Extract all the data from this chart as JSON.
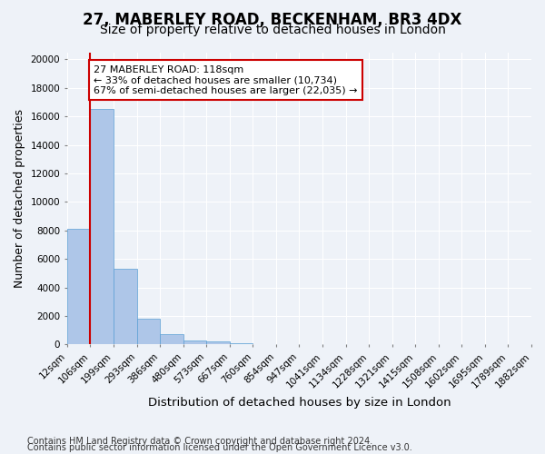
{
  "title_line1": "27, MABERLEY ROAD, BECKENHAM, BR3 4DX",
  "title_line2": "Size of property relative to detached houses in London",
  "xlabel": "Distribution of detached houses by size in London",
  "ylabel": "Number of detached properties",
  "bin_labels": [
    "12sqm",
    "106sqm",
    "199sqm",
    "293sqm",
    "386sqm",
    "480sqm",
    "573sqm",
    "667sqm",
    "760sqm",
    "854sqm",
    "947sqm",
    "1041sqm",
    "1134sqm",
    "1228sqm",
    "1321sqm",
    "1415sqm",
    "1508sqm",
    "1602sqm",
    "1695sqm",
    "1789sqm",
    "1882sqm"
  ],
  "bar_heights": [
    8100,
    16500,
    5300,
    1800,
    700,
    300,
    200,
    100,
    50,
    20,
    10,
    5,
    3,
    2,
    1,
    1,
    0,
    0,
    0,
    0
  ],
  "bar_color": "#aec6e8",
  "bar_edge_color": "#5a9fd4",
  "vline_x": 1,
  "vline_color": "#cc0000",
  "annotation_text": "27 MABERLEY ROAD: 118sqm\n← 33% of detached houses are smaller (10,734)\n67% of semi-detached houses are larger (22,035) →",
  "annotation_box_facecolor": "#ffffff",
  "annotation_box_edgecolor": "#cc0000",
  "ylim": [
    0,
    20500
  ],
  "yticks": [
    0,
    2000,
    4000,
    6000,
    8000,
    10000,
    12000,
    14000,
    16000,
    18000,
    20000
  ],
  "background_color": "#eef2f8",
  "grid_color": "#ffffff",
  "footer_line1": "Contains HM Land Registry data © Crown copyright and database right 2024.",
  "footer_line2": "Contains public sector information licensed under the Open Government Licence v3.0.",
  "title_fontsize": 12,
  "subtitle_fontsize": 10,
  "axis_label_fontsize": 9,
  "tick_fontsize": 7.5,
  "annotation_fontsize": 8,
  "footer_fontsize": 7
}
